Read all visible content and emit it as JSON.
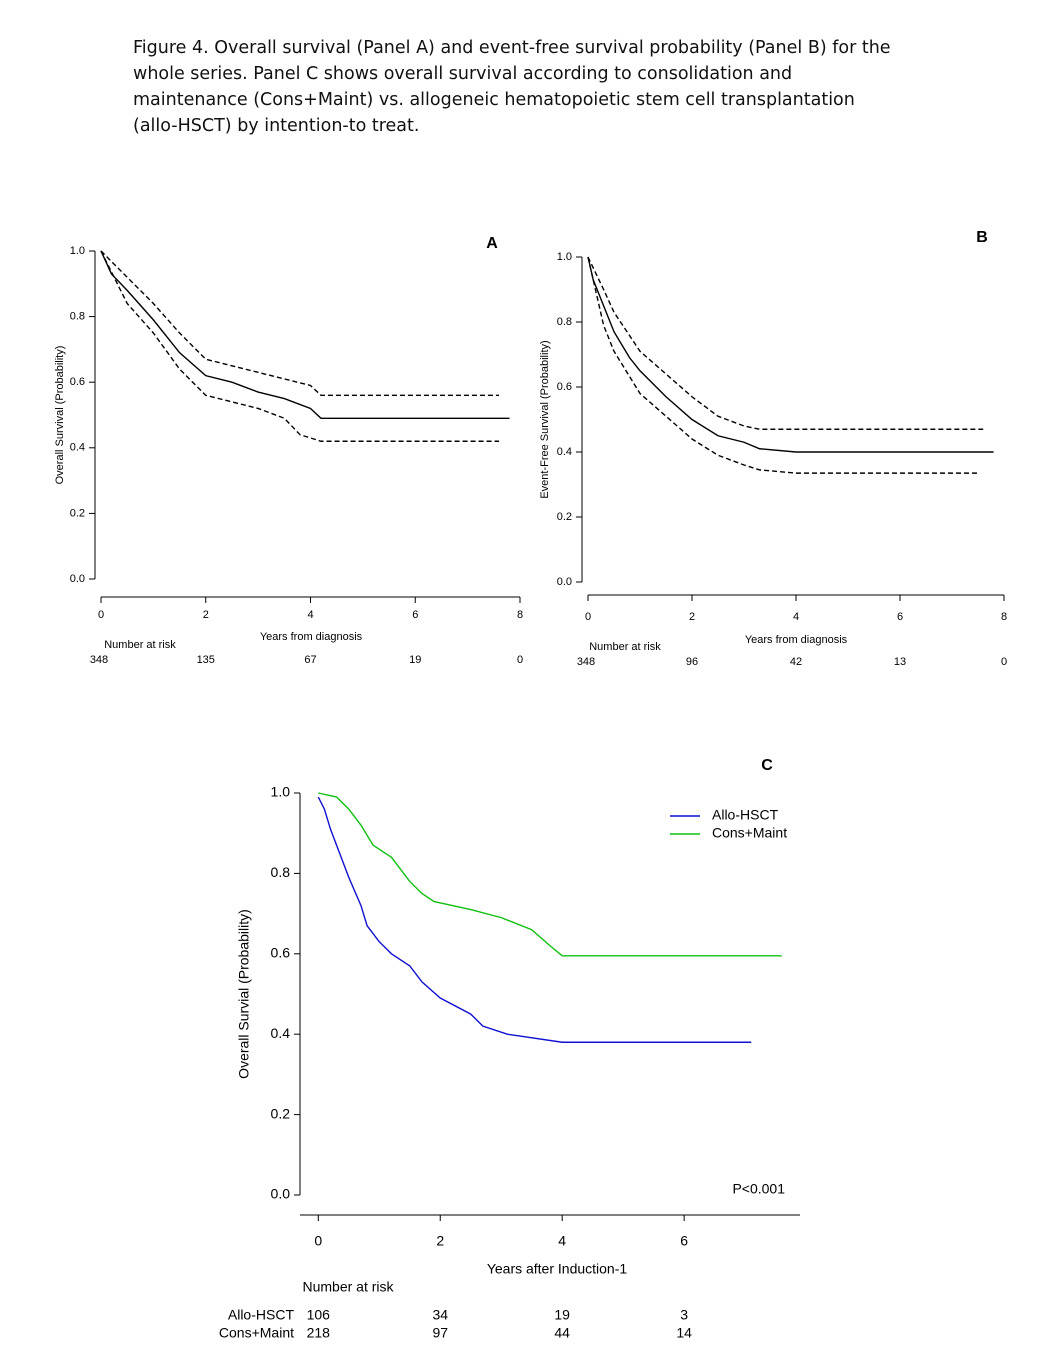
{
  "caption_lines": [
    "Figure 4. Overall survival (Panel A) and event-free survival probability (Panel B) for the",
    "whole series. Panel C shows overall survival according to consolidation and",
    "maintenance (Cons+Maint) vs. allogeneic hematopoietic stem cell transplantation",
    "(allo-HSCT) by intention-to treat."
  ],
  "chart_data": [
    {
      "type": "line",
      "panel": "A",
      "ylabel": "Overall Survival (Probability)",
      "xlabel": "Years from diagnosis",
      "xlim": [
        0,
        8
      ],
      "ylim": [
        0,
        1
      ],
      "xticks": [
        0,
        2,
        4,
        6,
        8
      ],
      "yticks": [
        {
          "value": 0,
          "label": "0.0"
        },
        0.2,
        0.4,
        0.6,
        0.8,
        {
          "value": 1,
          "label": "1.0"
        }
      ],
      "series": [
        {
          "color": "#000000",
          "dashed": false,
          "x": [
            0,
            0.2,
            0.5,
            1,
            1.5,
            2,
            2.5,
            3,
            3.5,
            4,
            4.2,
            7.8
          ],
          "values": [
            1,
            0.93,
            0.88,
            0.79,
            0.69,
            0.62,
            0.6,
            0.57,
            0.55,
            0.52,
            0.49,
            0.49
          ]
        },
        {
          "color": "#000000",
          "dashed": true,
          "x": [
            0,
            0.5,
            1,
            1.5,
            2,
            2.5,
            3,
            3.5,
            4,
            4.2,
            7.6
          ],
          "values": [
            1,
            0.92,
            0.84,
            0.75,
            0.67,
            0.65,
            0.63,
            0.61,
            0.59,
            0.56,
            0.56
          ]
        },
        {
          "color": "#000000",
          "dashed": true,
          "x": [
            0,
            0.5,
            1,
            1.5,
            2,
            2.5,
            3,
            3.5,
            3.8,
            4.2,
            7.6
          ],
          "values": [
            1,
            0.84,
            0.75,
            0.64,
            0.56,
            0.54,
            0.52,
            0.49,
            0.44,
            0.42,
            0.42
          ]
        }
      ],
      "at_risk": {
        "title": "Number at risk",
        "rows": [
          {
            "values": [
              "348",
              "135",
              "67",
              "19",
              "0"
            ]
          }
        ]
      }
    },
    {
      "type": "line",
      "panel": "B",
      "ylabel": "Event-Free Survival (Probability)",
      "xlabel": "Years from diagnosis",
      "xlim": [
        0,
        8
      ],
      "ylim": [
        0,
        1
      ],
      "xticks": [
        0,
        2,
        4,
        6,
        8
      ],
      "yticks": [
        {
          "value": 0,
          "label": "0.0"
        },
        0.2,
        0.4,
        0.6,
        0.8,
        {
          "value": 1,
          "label": "1.0"
        }
      ],
      "series": [
        {
          "color": "#000000",
          "dashed": false,
          "x": [
            0,
            0.1,
            0.3,
            0.5,
            0.8,
            1,
            1.5,
            2,
            2.5,
            3,
            3.3,
            4,
            7.8
          ],
          "values": [
            1,
            0.93,
            0.85,
            0.77,
            0.69,
            0.65,
            0.57,
            0.5,
            0.45,
            0.43,
            0.41,
            0.4,
            0.4
          ]
        },
        {
          "color": "#000000",
          "dashed": true,
          "x": [
            0,
            0.3,
            0.5,
            1,
            1.5,
            2,
            2.5,
            3,
            3.3,
            7.6
          ],
          "values": [
            1,
            0.9,
            0.83,
            0.71,
            0.64,
            0.57,
            0.51,
            0.48,
            0.47,
            0.47
          ]
        },
        {
          "color": "#000000",
          "dashed": true,
          "x": [
            0,
            0.3,
            0.5,
            1,
            1.5,
            2,
            2.5,
            3,
            3.3,
            4,
            7.5
          ],
          "values": [
            1,
            0.79,
            0.71,
            0.58,
            0.51,
            0.44,
            0.39,
            0.36,
            0.345,
            0.335,
            0.335
          ]
        }
      ],
      "at_risk": {
        "title": "Number at risk",
        "rows": [
          {
            "values": [
              "348",
              "96",
              "42",
              "13",
              "0"
            ]
          }
        ]
      }
    },
    {
      "type": "line",
      "panel": "C",
      "ylabel": "Overall Survial (Probability)",
      "xlabel": "Years after Induction-1",
      "xlim": [
        -0.3,
        7.9
      ],
      "ylim": [
        0,
        1
      ],
      "xticks": [
        0,
        2,
        4,
        6
      ],
      "yticks": [
        {
          "value": 0,
          "label": "0.0"
        },
        0.2,
        0.4,
        0.6,
        0.8,
        {
          "value": 1,
          "label": "1.0"
        }
      ],
      "legend": "upper right",
      "annotation": "P<0.001",
      "series": [
        {
          "name": "Allo-HSCT",
          "color": "#1010d0",
          "dashed": false,
          "x": [
            0,
            0.1,
            0.2,
            0.3,
            0.5,
            0.7,
            0.8,
            1,
            1.2,
            1.5,
            1.7,
            2,
            2.5,
            2.7,
            3.1,
            4,
            7.1
          ],
          "values": [
            0.99,
            0.96,
            0.91,
            0.87,
            0.79,
            0.72,
            0.67,
            0.63,
            0.6,
            0.57,
            0.53,
            0.49,
            0.45,
            0.42,
            0.4,
            0.38,
            0.38
          ]
        },
        {
          "name": "Cons+Maint",
          "color": "#10c010",
          "dashed": false,
          "x": [
            0,
            0.3,
            0.5,
            0.7,
            0.9,
            1.2,
            1.5,
            1.7,
            1.9,
            2.5,
            3,
            3.5,
            3.8,
            4,
            7.6
          ],
          "values": [
            1,
            0.99,
            0.96,
            0.92,
            0.87,
            0.84,
            0.78,
            0.75,
            0.73,
            0.71,
            0.69,
            0.66,
            0.62,
            0.595,
            0.595
          ]
        }
      ],
      "at_risk": {
        "title": "Number at risk",
        "rows": [
          {
            "name": "Allo-HSCT",
            "values": [
              "106",
              "34",
              "19",
              "3"
            ]
          },
          {
            "name": "Cons+Maint",
            "values": [
              "218",
              "97",
              "44",
              "14"
            ]
          }
        ]
      }
    }
  ]
}
